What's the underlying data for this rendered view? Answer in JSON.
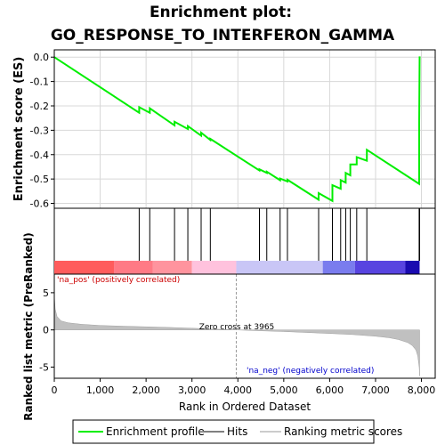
{
  "chart_data": {
    "type": "line",
    "title_line1": "Enrichment plot:",
    "title_line2": "GO_RESPONSE_TO_INTERFERON_GAMMA",
    "es_panel": {
      "ylabel": "Enrichment score (ES)",
      "ylim": [
        -0.62,
        0.03
      ],
      "yticks": [
        "0.0",
        "-0.1",
        "-0.2",
        "-0.3",
        "-0.4",
        "-0.5",
        "-0.6"
      ],
      "ytick_values": [
        0.0,
        -0.1,
        -0.2,
        -0.3,
        -0.4,
        -0.5,
        -0.6
      ],
      "grid": true,
      "series": [
        {
          "name": "Enrichment profile",
          "color": "#00ee00",
          "x": [
            0,
            1850,
            1850,
            2080,
            2080,
            2620,
            2620,
            2910,
            2910,
            3200,
            3200,
            3400,
            3400,
            4470,
            4470,
            4630,
            4630,
            4920,
            4920,
            5080,
            5080,
            5760,
            5760,
            6060,
            6060,
            6240,
            6240,
            6350,
            6350,
            6450,
            6450,
            6590,
            6590,
            6810,
            6810,
            7950,
            7950,
            7960
          ],
          "y": [
            0.0,
            -0.228,
            -0.205,
            -0.228,
            -0.21,
            -0.28,
            -0.265,
            -0.295,
            -0.283,
            -0.322,
            -0.31,
            -0.34,
            -0.335,
            -0.465,
            -0.46,
            -0.475,
            -0.47,
            -0.505,
            -0.498,
            -0.51,
            -0.503,
            -0.585,
            -0.558,
            -0.59,
            -0.525,
            -0.54,
            -0.505,
            -0.515,
            -0.475,
            -0.485,
            -0.44,
            -0.44,
            -0.41,
            -0.425,
            -0.38,
            -0.52,
            -0.27,
            0.003
          ]
        }
      ]
    },
    "hits": {
      "name": "Hits",
      "color": "#000000",
      "positions": [
        1850,
        2080,
        2620,
        2910,
        3200,
        3400,
        4470,
        4630,
        4920,
        5080,
        5760,
        6060,
        6240,
        6350,
        6450,
        6590,
        6810,
        7950,
        7960
      ]
    },
    "rank_colorbar": {
      "segments": [
        {
          "from": 0,
          "to": 1300,
          "color": "#ff5c5c"
        },
        {
          "from": 1300,
          "to": 2150,
          "color": "#ff7a85"
        },
        {
          "from": 2150,
          "to": 3000,
          "color": "#ff949e"
        },
        {
          "from": 3000,
          "to": 3965,
          "color": "#ffc2dd"
        },
        {
          "from": 3965,
          "to": 5850,
          "color": "#c9c6f6"
        },
        {
          "from": 5850,
          "to": 6550,
          "color": "#7a7cee"
        },
        {
          "from": 6550,
          "to": 7650,
          "color": "#5844e0"
        },
        {
          "from": 7650,
          "to": 7960,
          "color": "#1a0bb0"
        }
      ],
      "na_pos_label": "'na_pos' (positively correlated)",
      "na_neg_label": "'na_neg' (negatively correlated)"
    },
    "metric_panel": {
      "ylabel": "Ranked list metric (PreRanked)",
      "ylim": [
        -6.5,
        7.5
      ],
      "yticks": [
        "5",
        "0",
        "-5"
      ],
      "ytick_values": [
        5,
        0,
        -5
      ],
      "fill_color": "#c0c0c0",
      "zero_cross_label": "Zero cross at 3965",
      "zero_cross": 3965,
      "profile_x": [
        0,
        20,
        60,
        150,
        300,
        600,
        1000,
        1500,
        2000,
        2500,
        3000,
        3500,
        3965,
        4500,
        5000,
        5500,
        6000,
        6500,
        7000,
        7300,
        7500,
        7700,
        7800,
        7880,
        7920,
        7950,
        7960
      ],
      "profile_y": [
        4.7,
        2.8,
        1.8,
        1.2,
        0.95,
        0.75,
        0.6,
        0.5,
        0.42,
        0.33,
        0.22,
        0.1,
        0.0,
        -0.12,
        -0.22,
        -0.35,
        -0.48,
        -0.62,
        -0.85,
        -1.05,
        -1.3,
        -1.7,
        -2.1,
        -2.7,
        -3.5,
        -5.0,
        -6.2
      ]
    },
    "xaxis": {
      "xlabel": "Rank in Ordered Dataset",
      "xlim": [
        0,
        8300
      ],
      "xticks": [
        "0",
        "1,000",
        "2,000",
        "3,000",
        "4,000",
        "5,000",
        "6,000",
        "7,000",
        "8,000"
      ],
      "xtick_values": [
        0,
        1000,
        2000,
        3000,
        4000,
        5000,
        6000,
        7000,
        8000
      ]
    },
    "legend": {
      "placement": "bottom",
      "items": [
        {
          "label": "Enrichment profile",
          "color": "#00ee00"
        },
        {
          "label": "Hits",
          "color": "#808080"
        },
        {
          "label": "Ranking metric scores",
          "color": "#cccccc"
        }
      ]
    }
  }
}
